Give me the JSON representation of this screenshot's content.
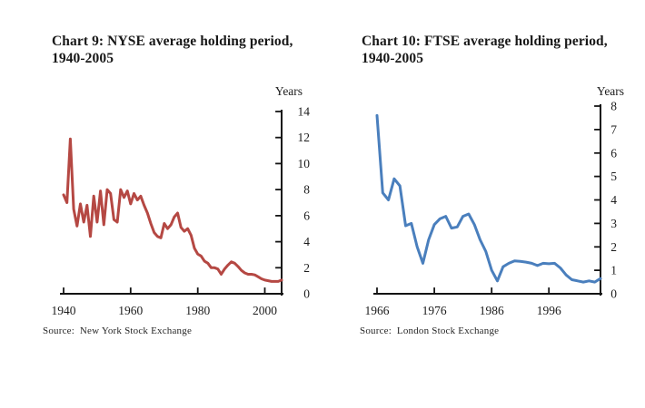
{
  "page": {
    "background": "#ffffff"
  },
  "charts": [
    {
      "title_line1": "Chart 9: NYSE average holding period,",
      "title_line2": "1940-2005",
      "y_axis_label": "Years",
      "source": "Source:  New York Stock Exchange"
    },
    {
      "title_line1": "Chart 10: FTSE average holding period,",
      "title_line2": "1940-2005",
      "y_axis_label": "Years",
      "source": "Source:  London Stock Exchange"
    }
  ],
  "chart_data": [
    {
      "type": "line",
      "title": "Chart 9: NYSE average holding period, 1940-2005",
      "xlabel": "",
      "ylabel": "Years",
      "source": "New York Stock Exchange",
      "x_start": 1940,
      "x_end": 2005,
      "x_step": 1,
      "x_ticks": [
        1940,
        1960,
        1980,
        2000
      ],
      "ylim": [
        0,
        14
      ],
      "y_ticks": [
        0,
        2,
        4,
        6,
        8,
        10,
        12,
        14
      ],
      "axis_side": "right",
      "grid": false,
      "legend": "none",
      "line_color": "#b54843",
      "axis_color": "#141414",
      "series": [
        {
          "name": "NYSE average holding period (years)",
          "values": [
            7.6,
            7.0,
            11.9,
            6.5,
            5.2,
            6.9,
            5.5,
            6.8,
            4.4,
            7.5,
            5.5,
            7.9,
            5.3,
            8.0,
            7.7,
            5.7,
            5.5,
            8.0,
            7.4,
            7.9,
            6.9,
            7.7,
            7.2,
            7.5,
            6.8,
            6.2,
            5.4,
            4.7,
            4.4,
            4.3,
            5.4,
            5.0,
            5.3,
            5.9,
            6.2,
            5.1,
            4.8,
            5.0,
            4.5,
            3.5,
            3.05,
            2.9,
            2.5,
            2.35,
            2.0,
            2.0,
            1.9,
            1.5,
            1.9,
            2.2,
            2.45,
            2.35,
            2.1,
            1.8,
            1.6,
            1.5,
            1.5,
            1.45,
            1.3,
            1.15,
            1.05,
            1.0,
            0.95,
            0.95,
            0.95,
            1.05
          ]
        }
      ]
    },
    {
      "type": "line",
      "title": "Chart 10: FTSE average holding period, 1940-2005",
      "xlabel": "",
      "ylabel": "Years",
      "source": "London Stock Exchange",
      "x_start": 1966,
      "x_end": 2005,
      "x_step": 1,
      "x_ticks": [
        1966,
        1976,
        1986,
        1996
      ],
      "ylim": [
        0,
        8
      ],
      "y_ticks": [
        0,
        1,
        2,
        3,
        4,
        5,
        6,
        7,
        8
      ],
      "axis_side": "right",
      "grid": false,
      "legend": "none",
      "line_color": "#4a7fbd",
      "axis_color": "#141414",
      "series": [
        {
          "name": "FTSE average holding period (years)",
          "values": [
            7.6,
            4.3,
            4.0,
            4.9,
            4.6,
            2.9,
            3.0,
            2.0,
            1.3,
            2.3,
            2.95,
            3.2,
            3.3,
            2.8,
            2.85,
            3.3,
            3.4,
            2.95,
            2.3,
            1.8,
            1.0,
            0.55,
            1.15,
            1.3,
            1.4,
            1.38,
            1.35,
            1.3,
            1.2,
            1.3,
            1.28,
            1.3,
            1.1,
            0.8,
            0.6,
            0.55,
            0.5,
            0.55,
            0.5,
            0.65
          ]
        }
      ]
    }
  ]
}
